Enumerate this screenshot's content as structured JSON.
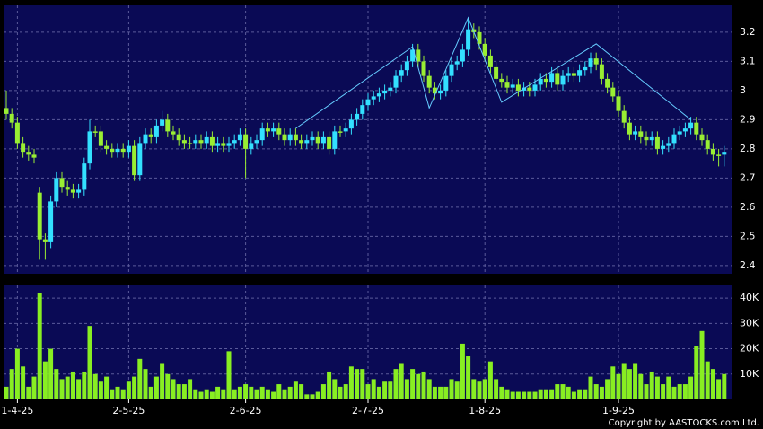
{
  "chart_data": [
    {
      "type": "candlestick",
      "open": [
        2.94,
        2.92,
        2.89,
        2.82,
        2.79,
        2.78,
        2.65,
        2.49,
        2.48,
        2.62,
        2.7,
        2.67,
        2.66,
        2.65,
        2.66,
        2.75,
        2.86,
        2.86,
        2.81,
        2.8,
        2.79,
        2.8,
        2.79,
        2.81,
        2.71,
        2.82,
        2.85,
        2.84,
        2.88,
        2.9,
        2.86,
        2.85,
        2.83,
        2.82,
        2.82,
        2.83,
        2.82,
        2.84,
        2.81,
        2.82,
        2.81,
        2.82,
        2.83,
        2.85,
        2.8,
        2.82,
        2.83,
        2.87,
        2.86,
        2.87,
        2.85,
        2.83,
        2.85,
        2.83,
        2.82,
        2.83,
        2.84,
        2.82,
        2.84,
        2.8,
        2.86,
        2.86,
        2.87,
        2.9,
        2.92,
        2.95,
        2.97,
        2.98,
        2.99,
        3.0,
        3.01,
        3.05,
        3.07,
        3.1,
        3.14,
        3.1,
        3.05,
        3.01,
        2.99,
        3.0,
        3.05,
        3.09,
        3.1,
        3.14,
        3.21,
        3.2,
        3.16,
        3.12,
        3.08,
        3.04,
        3.03,
        3.01,
        3.02,
        3.0,
        3.01,
        3.0,
        3.02,
        3.04,
        3.03,
        3.06,
        3.02,
        3.05,
        3.06,
        3.05,
        3.07,
        3.08,
        3.11,
        3.09,
        3.04,
        3.01,
        2.98,
        2.93,
        2.89,
        2.85,
        2.86,
        2.84,
        2.83,
        2.84,
        2.8,
        2.81,
        2.82,
        2.85,
        2.86,
        2.87,
        2.89,
        2.85,
        2.83,
        2.8,
        2.78,
        2.78
      ],
      "high": [
        3.0,
        2.94,
        2.91,
        2.84,
        2.81,
        2.8,
        2.67,
        2.51,
        2.64,
        2.72,
        2.72,
        2.69,
        2.68,
        2.68,
        2.77,
        2.9,
        2.88,
        2.88,
        2.83,
        2.82,
        2.82,
        2.82,
        2.83,
        2.83,
        2.84,
        2.87,
        2.87,
        2.9,
        2.93,
        2.92,
        2.88,
        2.87,
        2.85,
        2.84,
        2.85,
        2.85,
        2.86,
        2.86,
        2.84,
        2.84,
        2.84,
        2.85,
        2.87,
        2.87,
        2.84,
        2.85,
        2.89,
        2.89,
        2.89,
        2.89,
        2.87,
        2.87,
        2.87,
        2.85,
        2.85,
        2.86,
        2.86,
        2.86,
        2.86,
        2.88,
        2.88,
        2.89,
        2.92,
        2.94,
        2.97,
        2.99,
        3.0,
        3.01,
        3.02,
        3.03,
        3.07,
        3.09,
        3.12,
        3.16,
        3.16,
        3.12,
        3.07,
        3.03,
        3.02,
        3.07,
        3.11,
        3.12,
        3.16,
        3.25,
        3.23,
        3.22,
        3.18,
        3.14,
        3.1,
        3.06,
        3.05,
        3.04,
        3.04,
        3.03,
        3.03,
        3.04,
        3.06,
        3.06,
        3.08,
        3.08,
        3.07,
        3.08,
        3.08,
        3.09,
        3.1,
        3.13,
        3.13,
        3.11,
        3.06,
        3.03,
        3.0,
        2.95,
        2.91,
        2.88,
        2.88,
        2.86,
        2.86,
        2.86,
        2.83,
        2.84,
        2.87,
        2.88,
        2.89,
        2.91,
        2.91,
        2.87,
        2.85,
        2.82,
        2.8,
        2.81
      ],
      "low": [
        2.9,
        2.87,
        2.8,
        2.77,
        2.76,
        2.75,
        2.42,
        2.42,
        2.46,
        2.6,
        2.65,
        2.64,
        2.63,
        2.63,
        2.64,
        2.73,
        2.84,
        2.79,
        2.78,
        2.77,
        2.77,
        2.77,
        2.77,
        2.69,
        2.69,
        2.8,
        2.82,
        2.82,
        2.86,
        2.84,
        2.83,
        2.81,
        2.8,
        2.8,
        2.8,
        2.8,
        2.8,
        2.79,
        2.79,
        2.79,
        2.79,
        2.8,
        2.81,
        2.7,
        2.78,
        2.8,
        2.81,
        2.84,
        2.84,
        2.83,
        2.81,
        2.81,
        2.81,
        2.8,
        2.8,
        2.81,
        2.8,
        2.8,
        2.78,
        2.78,
        2.84,
        2.84,
        2.85,
        2.88,
        2.9,
        2.93,
        2.95,
        2.96,
        2.97,
        2.98,
        2.99,
        3.03,
        3.05,
        3.08,
        3.08,
        3.03,
        2.99,
        2.97,
        2.97,
        2.98,
        3.03,
        3.07,
        3.08,
        3.12,
        3.18,
        3.14,
        3.1,
        3.06,
        3.02,
        3.01,
        2.99,
        2.99,
        2.98,
        2.98,
        2.98,
        2.98,
        3.0,
        3.01,
        3.01,
        3.0,
        3.0,
        3.03,
        3.03,
        3.03,
        3.05,
        3.06,
        3.07,
        3.02,
        2.99,
        2.96,
        2.91,
        2.87,
        2.83,
        2.83,
        2.82,
        2.81,
        2.81,
        2.78,
        2.78,
        2.79,
        2.8,
        2.83,
        2.84,
        2.85,
        2.83,
        2.81,
        2.78,
        2.76,
        2.74,
        2.74
      ],
      "close": [
        2.92,
        2.89,
        2.82,
        2.79,
        2.78,
        2.77,
        2.49,
        2.48,
        2.62,
        2.7,
        2.67,
        2.66,
        2.65,
        2.66,
        2.75,
        2.86,
        2.86,
        2.81,
        2.8,
        2.79,
        2.8,
        2.79,
        2.81,
        2.71,
        2.82,
        2.85,
        2.84,
        2.88,
        2.9,
        2.86,
        2.85,
        2.83,
        2.82,
        2.82,
        2.83,
        2.82,
        2.84,
        2.81,
        2.82,
        2.81,
        2.82,
        2.83,
        2.85,
        2.8,
        2.82,
        2.83,
        2.87,
        2.86,
        2.87,
        2.85,
        2.83,
        2.85,
        2.83,
        2.82,
        2.83,
        2.84,
        2.82,
        2.84,
        2.8,
        2.86,
        2.86,
        2.87,
        2.9,
        2.92,
        2.95,
        2.97,
        2.98,
        2.99,
        3.0,
        3.01,
        3.05,
        3.07,
        3.1,
        3.14,
        3.1,
        3.05,
        3.01,
        2.99,
        3.0,
        3.05,
        3.09,
        3.1,
        3.14,
        3.21,
        3.2,
        3.16,
        3.12,
        3.08,
        3.04,
        3.03,
        3.01,
        3.02,
        3.0,
        3.01,
        3.0,
        3.02,
        3.04,
        3.03,
        3.06,
        3.02,
        3.05,
        3.06,
        3.05,
        3.07,
        3.08,
        3.11,
        3.09,
        3.04,
        3.01,
        2.98,
        2.93,
        2.89,
        2.85,
        2.86,
        2.84,
        2.83,
        2.84,
        2.8,
        2.81,
        2.82,
        2.85,
        2.86,
        2.87,
        2.89,
        2.85,
        2.83,
        2.8,
        2.78,
        2.78,
        2.79
      ],
      "up_color": "#33e0ff",
      "down_color": "#99ee33",
      "ylim": [
        2.372,
        3.292
      ],
      "yticks": [
        2.4,
        2.5,
        2.6,
        2.7,
        2.8,
        2.9,
        3,
        3.1,
        3.2
      ],
      "grid": true,
      "zigzag": {
        "x": [
          52,
          73,
          76,
          83,
          89,
          106,
          123
        ],
        "values": [
          2.87,
          3.15,
          2.94,
          3.25,
          2.96,
          3.16,
          2.9
        ],
        "color": "#66ccff"
      }
    },
    {
      "type": "bar",
      "categories": [
        null,
        null,
        "1-4-25",
        null,
        null,
        null,
        null,
        null,
        null,
        null,
        null,
        null,
        null,
        null,
        null,
        null,
        null,
        null,
        null,
        null,
        null,
        null,
        "2-5-25",
        null,
        null,
        null,
        null,
        null,
        null,
        null,
        null,
        null,
        null,
        null,
        null,
        null,
        null,
        null,
        null,
        null,
        null,
        null,
        null,
        "2-6-25",
        null,
        null,
        null,
        null,
        null,
        null,
        null,
        null,
        null,
        null,
        null,
        null,
        null,
        null,
        null,
        null,
        null,
        null,
        null,
        null,
        null,
        "2-7-25",
        null,
        null,
        null,
        null,
        null,
        null,
        null,
        null,
        null,
        null,
        null,
        null,
        null,
        null,
        null,
        null,
        null,
        null,
        null,
        null,
        "1-8-25",
        null,
        null,
        null,
        null,
        null,
        null,
        null,
        null,
        null,
        null,
        null,
        null,
        null,
        null,
        null,
        null,
        null,
        null,
        null,
        null,
        null,
        null,
        null,
        "1-9-25",
        null,
        null,
        null,
        null,
        null,
        null,
        null,
        null,
        null,
        null,
        null,
        null,
        null,
        null,
        null,
        null,
        null,
        null,
        null
      ],
      "values": [
        5000,
        12000,
        20000,
        13000,
        5000,
        9000,
        42000,
        15000,
        20000,
        12000,
        8000,
        9000,
        11000,
        8000,
        11000,
        29000,
        10000,
        7000,
        9000,
        4000,
        5000,
        4000,
        7000,
        9000,
        16000,
        12000,
        5000,
        9000,
        14000,
        10000,
        8000,
        6000,
        6000,
        8000,
        4000,
        3000,
        4000,
        3000,
        5000,
        4000,
        19000,
        4000,
        5000,
        6000,
        5000,
        4000,
        5000,
        4000,
        3000,
        6000,
        4000,
        5000,
        7000,
        6000,
        2000,
        2000,
        3000,
        6000,
        11000,
        8000,
        5000,
        6000,
        13000,
        12000,
        12000,
        6000,
        8000,
        5000,
        7000,
        7000,
        12000,
        14000,
        8000,
        12000,
        10000,
        11000,
        8000,
        5000,
        5000,
        5000,
        8000,
        7000,
        22000,
        17000,
        8000,
        7000,
        8000,
        15000,
        8000,
        5000,
        4000,
        3000,
        3000,
        3000,
        3000,
        3000,
        4000,
        4000,
        4000,
        6000,
        6000,
        5000,
        3000,
        4000,
        4000,
        9000,
        6000,
        5000,
        8000,
        13000,
        10000,
        14000,
        12000,
        14000,
        10000,
        6000,
        11000,
        9000,
        6000,
        9000,
        5000,
        6000,
        6000,
        9000,
        21000,
        27000,
        15000,
        12000,
        8000,
        10000
      ],
      "color": "#88ee22",
      "ylim": [
        0,
        45000
      ],
      "yticks": [
        {
          "value": 10000,
          "label": "10K"
        },
        {
          "value": 20000,
          "label": "20K"
        },
        {
          "value": 30000,
          "label": "30K"
        },
        {
          "value": 40000,
          "label": "40K"
        }
      ],
      "grid": true
    }
  ],
  "copyright": "Copyright by AASTOCKS.com Ltd."
}
